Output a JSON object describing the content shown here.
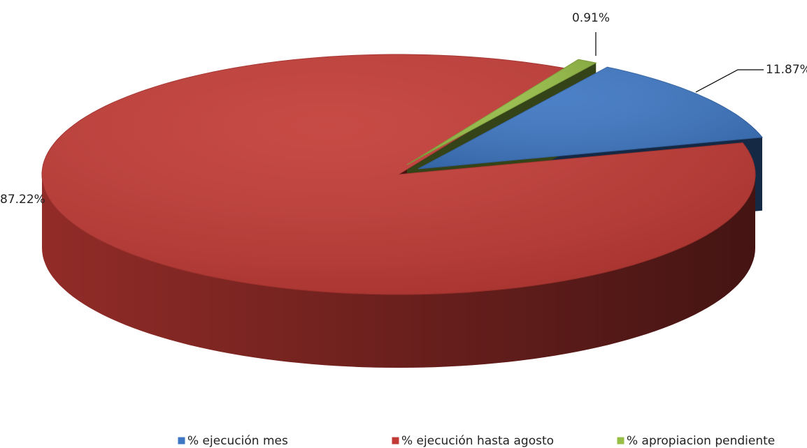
{
  "chart_data": {
    "type": "pie",
    "categories": [
      "% ejecución mes",
      "% ejecución hasta agosto",
      "% apropiacion pendiente"
    ],
    "values": [
      11.87,
      87.22,
      0.91
    ],
    "value_labels": [
      "11.87%",
      "87.22%",
      "0.91%"
    ],
    "colors": [
      "#3d76c2",
      "#c23a35",
      "#97be46"
    ],
    "legend": "bottom"
  }
}
